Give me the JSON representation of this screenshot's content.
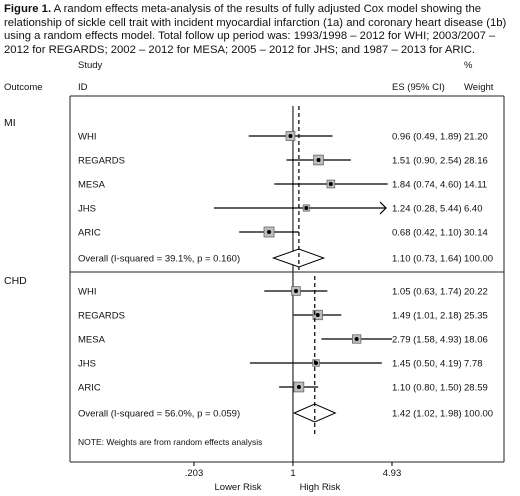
{
  "caption": {
    "label": "Figure 1.",
    "text": "A random effects meta-analysis of the results of fully adjusted Cox model showing the relationship of sickle cell trait with incident myocardial infarction (1a) and coronary heart disease (1b) using a random effects model. Total follow up period was: 1993/1998 – 2012 for WHI; 2003/2007 – 2012 for REGARDS; 2002 – 2012 for MESA; 2005 – 2012 for JHS; and 1987 – 2013 for ARIC."
  },
  "chart_data": {
    "type": "forest",
    "header": {
      "study": "Study",
      "outcome": "Outcome",
      "id": "ID",
      "es": "ES (95% CI)",
      "pct": "%",
      "weight": "Weight"
    },
    "x_scale": "log",
    "xlim": [
      0.203,
      4.93
    ],
    "xticks": [
      {
        "value": 0.203,
        "label": ".203"
      },
      {
        "value": 1,
        "label": "1"
      },
      {
        "value": 4.93,
        "label": "4.93"
      }
    ],
    "null_line": 1,
    "x_annotations": {
      "left": "Lower Risk",
      "right": "High Risk"
    },
    "groups": [
      {
        "name": "MI",
        "studies": [
          {
            "id": "WHI",
            "es": 0.96,
            "lo": 0.49,
            "hi": 1.89,
            "es_text": "0.96 (0.49, 1.89)",
            "weight": "21.20",
            "w": 21.2
          },
          {
            "id": "REGARDS",
            "es": 1.51,
            "lo": 0.9,
            "hi": 2.54,
            "es_text": "1.51 (0.90, 2.54)",
            "weight": "28.16",
            "w": 28.16
          },
          {
            "id": "MESA",
            "es": 1.84,
            "lo": 0.74,
            "hi": 4.6,
            "es_text": "1.84 (0.74, 4.60)",
            "weight": "14.11",
            "w": 14.11
          },
          {
            "id": "JHS",
            "es": 1.24,
            "lo": 0.28,
            "hi": 5.44,
            "es_text": "1.24 (0.28, 5.44)",
            "weight": "6.40",
            "w": 6.4
          },
          {
            "id": "ARIC",
            "es": 0.68,
            "lo": 0.42,
            "hi": 1.1,
            "es_text": "0.68 (0.42, 1.10)",
            "weight": "30.14",
            "w": 30.14
          }
        ],
        "overall": {
          "label": "Overall  (I-squared = 39.1%, p = 0.160)",
          "es": 1.1,
          "lo": 0.73,
          "hi": 1.64,
          "es_text": "1.10 (0.73, 1.64)",
          "weight": "100.00"
        }
      },
      {
        "name": "CHD",
        "studies": [
          {
            "id": "WHI",
            "es": 1.05,
            "lo": 0.63,
            "hi": 1.74,
            "es_text": "1.05 (0.63, 1.74)",
            "weight": "20.22",
            "w": 20.22
          },
          {
            "id": "REGARDS",
            "es": 1.49,
            "lo": 1.01,
            "hi": 2.18,
            "es_text": "1.49 (1.01, 2.18)",
            "weight": "25.35",
            "w": 25.35
          },
          {
            "id": "MESA",
            "es": 2.79,
            "lo": 1.58,
            "hi": 4.93,
            "es_text": "2.79 (1.58, 4.93)",
            "weight": "18.06",
            "w": 18.06
          },
          {
            "id": "JHS",
            "es": 1.45,
            "lo": 0.5,
            "hi": 4.19,
            "es_text": "1.45 (0.50, 4.19)",
            "weight": "7.78",
            "w": 7.78
          },
          {
            "id": "ARIC",
            "es": 1.1,
            "lo": 0.8,
            "hi": 1.5,
            "es_text": "1.10 (0.80, 1.50)",
            "weight": "28.59",
            "w": 28.59
          }
        ],
        "overall": {
          "label": "Overall  (I-squared = 56.0%, p = 0.059)",
          "es": 1.42,
          "lo": 1.02,
          "hi": 1.98,
          "es_text": "1.42 (1.02, 1.98)",
          "weight": "100.00"
        }
      }
    ],
    "note": "NOTE: Weights are from random effects analysis"
  }
}
